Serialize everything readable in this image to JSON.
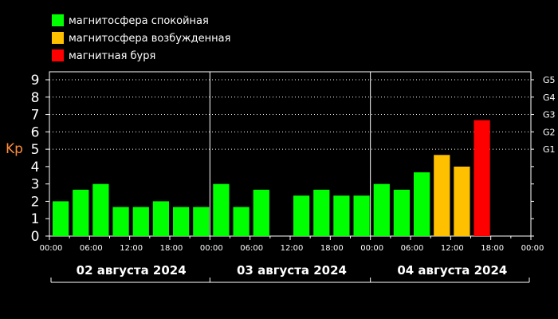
{
  "chart_data": {
    "type": "bar",
    "ylabel": "Kp",
    "ylim": [
      0,
      9
    ],
    "yticks": [
      "0",
      "1",
      "2",
      "3",
      "4",
      "5",
      "6",
      "7",
      "8",
      "9"
    ],
    "right_axis_labels": [
      {
        "label": "G1",
        "kp": 5
      },
      {
        "label": "G2",
        "kp": 6
      },
      {
        "label": "G3",
        "kp": 7
      },
      {
        "label": "G4",
        "kp": 8
      },
      {
        "label": "G5",
        "kp": 9
      }
    ],
    "grid": "dotted horizontal lines at Kp 5–9",
    "legend_position": "top-left",
    "legend": [
      {
        "label": "магнитосфера спокойная",
        "color": "#00ff00",
        "level": "quiet"
      },
      {
        "label": "магнитосфера возбужденная",
        "color": "#ffc000",
        "level": "active"
      },
      {
        "label": "магнитная буря",
        "color": "#ff0000",
        "level": "storm"
      }
    ],
    "days": [
      {
        "label": "02 августа 2024",
        "ticks": [
          "00:00",
          "06:00",
          "12:00",
          "18:00",
          "00:00"
        ],
        "values": [
          2.0,
          2.67,
          3.0,
          1.67,
          1.67,
          2.0,
          1.67,
          1.67
        ],
        "levels": [
          "quiet",
          "quiet",
          "quiet",
          "quiet",
          "quiet",
          "quiet",
          "quiet",
          "quiet"
        ]
      },
      {
        "label": "03 августа 2024",
        "ticks": [
          "00:00",
          "06:00",
          "12:00",
          "18:00",
          "00:00"
        ],
        "values": [
          3.0,
          1.67,
          2.67,
          null,
          2.33,
          2.67,
          2.33,
          2.33
        ],
        "levels": [
          "quiet",
          "quiet",
          "quiet",
          null,
          "quiet",
          "quiet",
          "quiet",
          "quiet"
        ]
      },
      {
        "label": "04 августа 2024",
        "ticks": [
          "00:00",
          "06:00",
          "12:00",
          "18:00",
          "00:00"
        ],
        "values": [
          3.0,
          2.67,
          3.67,
          4.67,
          4.0,
          6.67,
          null,
          null
        ],
        "levels": [
          "quiet",
          "quiet",
          "quiet",
          "active",
          "active",
          "storm",
          null,
          null
        ]
      }
    ]
  }
}
